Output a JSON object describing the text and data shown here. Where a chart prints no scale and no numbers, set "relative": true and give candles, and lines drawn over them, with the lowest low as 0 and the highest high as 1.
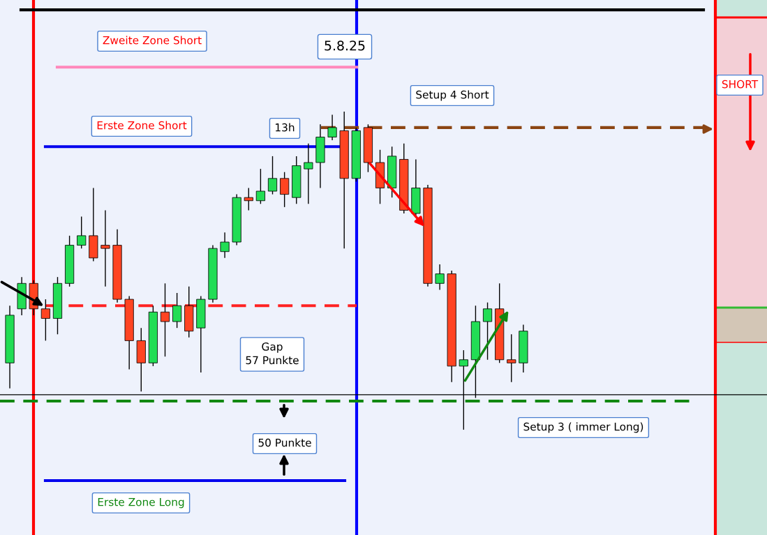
{
  "chart_data": {
    "type": "candlestick",
    "relative": true,
    "categories": [
      null,
      null,
      null,
      null,
      null,
      null,
      null,
      null,
      null,
      null,
      null,
      null,
      null,
      null,
      null,
      null,
      null,
      null,
      null,
      null,
      null,
      null,
      null,
      null,
      null,
      null,
      null,
      null,
      null,
      null,
      null,
      null,
      null,
      null,
      null,
      null,
      null,
      null,
      null,
      null,
      null,
      null,
      null,
      null
    ],
    "ohlc": [
      [
        0.21,
        0.39,
        0.13,
        0.36
      ],
      [
        0.38,
        0.48,
        0.36,
        0.46
      ],
      [
        0.46,
        0.47,
        0.36,
        0.38
      ],
      [
        0.38,
        0.41,
        0.28,
        0.35
      ],
      [
        0.35,
        0.48,
        0.3,
        0.46
      ],
      [
        0.46,
        0.61,
        0.45,
        0.58
      ],
      [
        0.58,
        0.67,
        0.57,
        0.61
      ],
      [
        0.61,
        0.76,
        0.53,
        0.54
      ],
      [
        0.58,
        0.69,
        0.45,
        0.57
      ],
      [
        0.58,
        0.63,
        0.4,
        0.41
      ],
      [
        0.41,
        0.42,
        0.19,
        0.28
      ],
      [
        0.28,
        0.32,
        0.12,
        0.21
      ],
      [
        0.21,
        0.39,
        0.2,
        0.37
      ],
      [
        0.37,
        0.46,
        0.23,
        0.34
      ],
      [
        0.34,
        0.43,
        0.32,
        0.39
      ],
      [
        0.39,
        0.45,
        0.29,
        0.31
      ],
      [
        0.32,
        0.42,
        0.18,
        0.41
      ],
      [
        0.41,
        0.58,
        0.4,
        0.57
      ],
      [
        0.56,
        0.62,
        0.54,
        0.59
      ],
      [
        0.59,
        0.74,
        0.58,
        0.73
      ],
      [
        0.73,
        0.76,
        0.69,
        0.72
      ],
      [
        0.72,
        0.82,
        0.71,
        0.75
      ],
      [
        0.75,
        0.86,
        0.74,
        0.79
      ],
      [
        0.79,
        0.81,
        0.7,
        0.74
      ],
      [
        0.73,
        0.86,
        0.71,
        0.83
      ],
      [
        0.82,
        0.9,
        0.71,
        0.84
      ],
      [
        0.84,
        0.96,
        0.76,
        0.92
      ],
      [
        0.92,
        0.99,
        0.91,
        0.95
      ],
      [
        0.94,
        1.0,
        0.57,
        0.79
      ],
      [
        0.79,
        0.95,
        0.78,
        0.94
      ],
      [
        0.95,
        0.96,
        0.81,
        0.84
      ],
      [
        0.84,
        0.88,
        0.71,
        0.76
      ],
      [
        0.76,
        0.89,
        0.73,
        0.86
      ],
      [
        0.85,
        0.9,
        0.68,
        0.69
      ],
      [
        0.68,
        0.85,
        0.67,
        0.76
      ],
      [
        0.76,
        0.77,
        0.45,
        0.46
      ],
      [
        0.46,
        0.52,
        0.44,
        0.49
      ],
      [
        0.49,
        0.5,
        0.15,
        0.2
      ],
      [
        0.2,
        0.25,
        0,
        0.22
      ],
      [
        0.22,
        0.39,
        0.1,
        0.34
      ],
      [
        0.34,
        0.4,
        0.22,
        0.38
      ],
      [
        0.38,
        0.46,
        0.21,
        0.22
      ],
      [
        0.22,
        0.3,
        0.15,
        0.21
      ],
      [
        0.21,
        0.33,
        0.18,
        0.31
      ]
    ],
    "colors": [
      "#22dd55",
      "#22dd55",
      "#ff4422",
      "#ff4422",
      "#22dd55",
      "#22dd55",
      "#22dd55",
      "#ff4422",
      "#ff4422",
      "#ff4422",
      "#ff4422",
      "#ff4422",
      "#22dd55",
      "#ff4422",
      "#22dd55",
      "#ff4422",
      "#22dd55",
      "#22dd55",
      "#22dd55",
      "#22dd55",
      "#ff4422",
      "#22dd55",
      "#22dd55",
      "#ff4422",
      "#22dd55",
      "#22dd55",
      "#22dd55",
      "#22dd55",
      "#ff4422",
      "#22dd55",
      "#ff4422",
      "#ff4422",
      "#22dd55",
      "#ff4422",
      "#22dd55",
      "#ff4422",
      "#22dd55",
      "#ff4422",
      "#22dd55",
      "#22dd55",
      "#22dd55",
      "#ff4422",
      "#ff4422",
      "#22dd55"
    ],
    "ref_lines": [
      {
        "axis": "y",
        "value": 1.32,
        "color": "#000000",
        "line_style": "solid"
      },
      {
        "axis": "y",
        "value": 1.14,
        "color": "#ff88bb",
        "line_style": "solid"
      },
      {
        "axis": "y",
        "value": 0.89,
        "color": "#0000ee",
        "line_style": "solid"
      },
      {
        "axis": "y",
        "value": 0.95,
        "color": "#8b4513",
        "line_style": "dashed"
      },
      {
        "axis": "y",
        "value": 0.39,
        "color": "#ff2222",
        "line_style": "dashed"
      },
      {
        "axis": "y",
        "value": 0.11,
        "color": "#000000",
        "line_style": "solid"
      },
      {
        "axis": "y",
        "value": 0.09,
        "color": "#118811",
        "line_style": "dashed"
      },
      {
        "axis": "y",
        "value": -0.16,
        "color": "#0000ee",
        "line_style": "solid"
      }
    ],
    "annotations": [
      "Zweite Zone Short",
      "5.8.25",
      "Setup 4 Short",
      "Erste Zone Short",
      "13h",
      "Gap\n57 Punkte",
      "50 Punkte",
      "Setup 3 ( immer Long)",
      "Erste Zone Long",
      "SHORT"
    ]
  }
}
